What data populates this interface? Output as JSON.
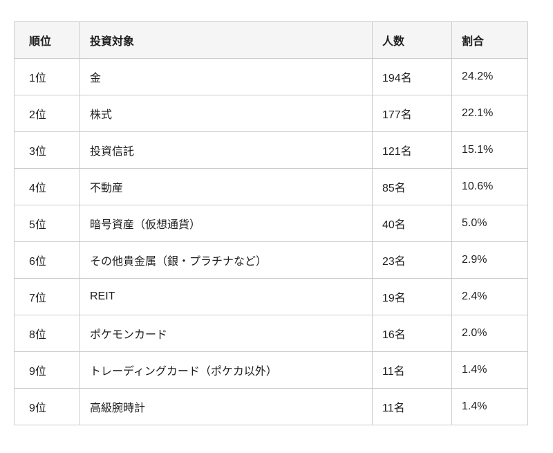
{
  "colors": {
    "page_background": "#ffffff",
    "header_background": "#f5f5f5",
    "border": "#cbcbcb",
    "text": "#1f1f1f"
  },
  "table": {
    "columns": {
      "rank": "順位",
      "target": "投資対象",
      "count": "人数",
      "percent": "割合"
    },
    "rows": [
      {
        "rank": "1位",
        "target": "金",
        "count": "194名",
        "percent": "24.2%"
      },
      {
        "rank": "2位",
        "target": "株式",
        "count": "177名",
        "percent": "22.1%"
      },
      {
        "rank": "3位",
        "target": "投資信託",
        "count": "121名",
        "percent": "15.1%"
      },
      {
        "rank": "4位",
        "target": "不動産",
        "count": "85名",
        "percent": "10.6%"
      },
      {
        "rank": "5位",
        "target": "暗号資産（仮想通貨）",
        "count": "40名",
        "percent": "5.0%"
      },
      {
        "rank": "6位",
        "target": "その他貴金属（銀・プラチナなど）",
        "count": "23名",
        "percent": "2.9%"
      },
      {
        "rank": "7位",
        "target": "REIT",
        "count": "19名",
        "percent": "2.4%"
      },
      {
        "rank": "8位",
        "target": "ポケモンカード",
        "count": "16名",
        "percent": "2.0%"
      },
      {
        "rank": "9位",
        "target": "トレーディングカード（ポケカ以外）",
        "count": "11名",
        "percent": "1.4%"
      },
      {
        "rank": "9位",
        "target": "高級腕時計",
        "count": "11名",
        "percent": "1.4%"
      }
    ]
  },
  "chart_data": {
    "type": "table",
    "title": "",
    "columns": [
      "順位",
      "投資対象",
      "人数",
      "割合"
    ],
    "ranks": [
      "1位",
      "2位",
      "3位",
      "4位",
      "5位",
      "6位",
      "7位",
      "8位",
      "9位",
      "9位"
    ],
    "targets": [
      "金",
      "株式",
      "投資信託",
      "不動産",
      "暗号資産（仮想通貨）",
      "その他貴金属（銀・プラチナなど）",
      "REIT",
      "ポケモンカード",
      "トレーディングカード（ポケカ以外）",
      "高級腕時計"
    ],
    "counts": [
      194,
      177,
      121,
      85,
      40,
      23,
      19,
      16,
      11,
      11
    ],
    "count_unit": "名",
    "percents": [
      24.2,
      22.1,
      15.1,
      10.6,
      5.0,
      2.9,
      2.4,
      2.0,
      1.4,
      1.4
    ],
    "percent_unit": "%"
  }
}
